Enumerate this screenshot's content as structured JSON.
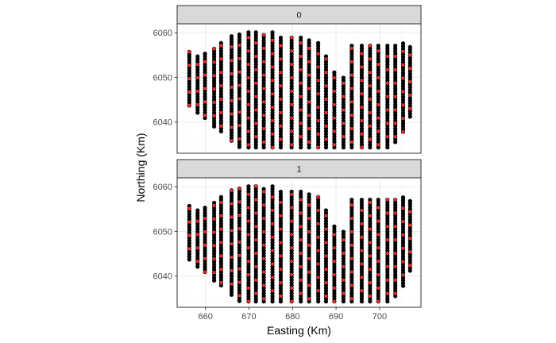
{
  "chart_data": {
    "type": "scatter",
    "facet_var": "",
    "panels": [
      {
        "label": "0",
        "highlight_offset": 0
      },
      {
        "label": "1",
        "highlight_offset": 1
      }
    ],
    "xlabel": "Easting (Km)",
    "ylabel": "Northing (Km)",
    "xlim": [
      653.5,
      709.5
    ],
    "ylim": [
      6033.0,
      6062.0
    ],
    "x_ticks": [
      660,
      670,
      680,
      690,
      700
    ],
    "y_ticks": [
      6040,
      6050,
      6060
    ],
    "grid": true,
    "point_spacing": 0.6,
    "highlight_every": 5,
    "lines": [
      {
        "x": 656.3,
        "y_min": 6043.7,
        "y_max": 6056.2
      },
      {
        "x": 658.2,
        "y_min": 6042.1,
        "y_max": 6054.9
      },
      {
        "x": 659.9,
        "y_min": 6040.9,
        "y_max": 6055.4
      },
      {
        "x": 662.0,
        "y_min": 6039.0,
        "y_max": 6056.8
      },
      {
        "x": 663.6,
        "y_min": 6037.9,
        "y_max": 6057.9
      },
      {
        "x": 666.0,
        "y_min": 6035.8,
        "y_max": 6059.5
      },
      {
        "x": 667.8,
        "y_min": 6034.4,
        "y_max": 6060.0
      },
      {
        "x": 669.9,
        "y_min": 6034.3,
        "y_max": 6060.4
      },
      {
        "x": 671.6,
        "y_min": 6034.3,
        "y_max": 6060.1
      },
      {
        "x": 673.4,
        "y_min": 6034.3,
        "y_max": 6060.0
      },
      {
        "x": 675.4,
        "y_min": 6034.3,
        "y_max": 6060.5
      },
      {
        "x": 677.3,
        "y_min": 6034.3,
        "y_max": 6059.1
      },
      {
        "x": 679.8,
        "y_min": 6034.3,
        "y_max": 6059.3
      },
      {
        "x": 681.9,
        "y_min": 6034.3,
        "y_max": 6059.2
      },
      {
        "x": 683.8,
        "y_min": 6034.3,
        "y_max": 6058.9
      },
      {
        "x": 685.9,
        "y_min": 6034.3,
        "y_max": 6058.0
      },
      {
        "x": 687.7,
        "y_min": 6034.3,
        "y_max": 6055.2
      },
      {
        "x": 689.6,
        "y_min": 6034.3,
        "y_max": 6051.2
      },
      {
        "x": 691.7,
        "y_min": 6034.3,
        "y_max": 6050.0
      },
      {
        "x": 693.6,
        "y_min": 6034.3,
        "y_max": 6057.5
      },
      {
        "x": 695.9,
        "y_min": 6034.3,
        "y_max": 6057.6
      },
      {
        "x": 697.8,
        "y_min": 6034.3,
        "y_max": 6057.7
      },
      {
        "x": 699.7,
        "y_min": 6034.3,
        "y_max": 6057.5
      },
      {
        "x": 701.8,
        "y_min": 6034.3,
        "y_max": 6057.6
      },
      {
        "x": 703.6,
        "y_min": 6035.5,
        "y_max": 6057.3
      },
      {
        "x": 705.4,
        "y_min": 6037.8,
        "y_max": 6057.6
      },
      {
        "x": 707.0,
        "y_min": 6041.2,
        "y_max": 6057.1
      }
    ],
    "colors": {
      "point": "#000000",
      "highlight": "#ff2a2a",
      "strip_fill": "#d9d9d9",
      "strip_border": "#333333",
      "panel_border": "#333333",
      "grid_major": "#ebebeb",
      "grid_minor": "#f5f5f5"
    }
  }
}
